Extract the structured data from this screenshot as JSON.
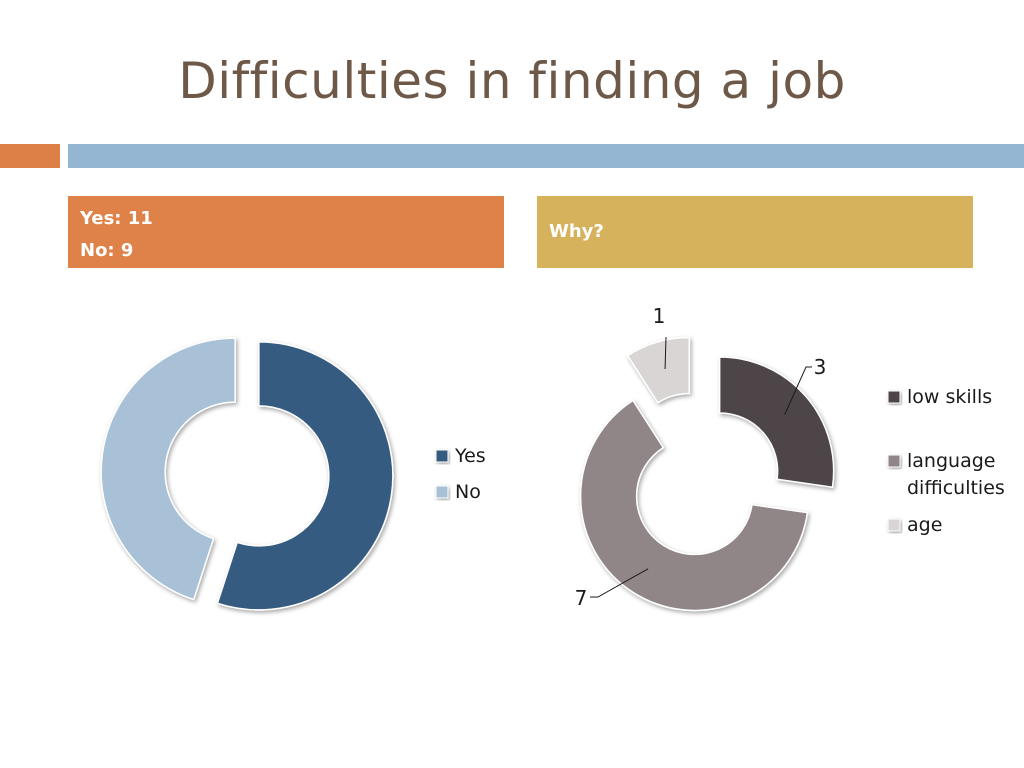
{
  "slide": {
    "title": "Difficulties in finding a job",
    "left_box": {
      "line1": "Yes: 11",
      "line2": "No: 9"
    },
    "right_box": {
      "text": "Why?"
    }
  },
  "colors": {
    "title": "#6e5848",
    "accent_orange": "#dd8047",
    "accent_blue": "#94b6d2",
    "box_orange": "#df8249",
    "box_gold": "#d6b25d"
  },
  "chart_data": [
    {
      "type": "pie",
      "variant": "exploded-doughnut",
      "title": "",
      "categories": [
        "Yes",
        "No"
      ],
      "values": [
        11,
        9
      ],
      "colors": [
        "#355c80",
        "#a9c1d7"
      ],
      "legend": {
        "placement": "right",
        "entries": [
          "Yes",
          "No"
        ]
      },
      "data_labels": false
    },
    {
      "type": "pie",
      "variant": "exploded-doughnut",
      "title": "",
      "categories": [
        "low skills",
        "language difficulties",
        "age"
      ],
      "values": [
        3,
        7,
        1
      ],
      "colors": [
        "#4d4546",
        "#908587",
        "#d9d5d4"
      ],
      "legend": {
        "placement": "right",
        "entries": [
          "low skills",
          "language difficulties",
          "age"
        ]
      },
      "data_labels": true
    }
  ]
}
